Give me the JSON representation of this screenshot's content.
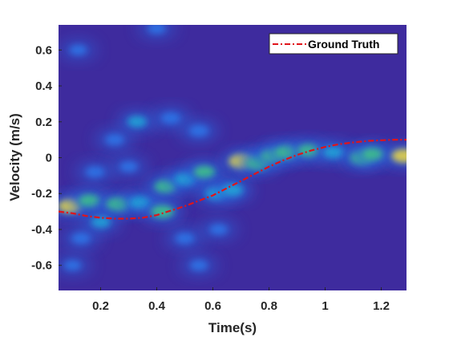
{
  "chart_data": {
    "type": "heatmap",
    "title": "",
    "xlabel": "Time(s)",
    "ylabel": "Velocity (m/s)",
    "xlim": [
      0.05,
      1.29
    ],
    "ylim": [
      -0.74,
      0.74
    ],
    "xticks": [
      0.2,
      0.4,
      0.6,
      0.8,
      1.0,
      1.2
    ],
    "xtick_labels": [
      "0.2",
      "0.4",
      "0.6",
      "0.8",
      "1",
      "1.2"
    ],
    "yticks": [
      0.6,
      0.4,
      0.2,
      0,
      -0.2,
      -0.4,
      -0.6
    ],
    "ytick_labels": [
      "0.6",
      "0.4",
      "0.2",
      "0",
      "-0.2",
      "-0.4",
      "-0.6"
    ],
    "grid": false,
    "legend": {
      "position": "top-right",
      "entries": [
        "Ground Truth"
      ]
    },
    "colors": {
      "background": "#3e2b9e",
      "ground_truth": "#e0141a"
    },
    "ground_truth": {
      "name": "Ground Truth",
      "style": "dash-dot",
      "x": [
        0.05,
        0.1,
        0.15,
        0.2,
        0.25,
        0.3,
        0.35,
        0.4,
        0.45,
        0.5,
        0.55,
        0.6,
        0.65,
        0.7,
        0.75,
        0.8,
        0.85,
        0.9,
        0.95,
        1.0,
        1.05,
        1.1,
        1.15,
        1.2,
        1.25,
        1.29
      ],
      "y": [
        -0.3,
        -0.31,
        -0.325,
        -0.335,
        -0.34,
        -0.34,
        -0.335,
        -0.32,
        -0.295,
        -0.27,
        -0.24,
        -0.21,
        -0.17,
        -0.13,
        -0.09,
        -0.05,
        -0.015,
        0.015,
        0.04,
        0.06,
        0.075,
        0.085,
        0.093,
        0.097,
        0.1,
        0.1
      ]
    },
    "heatmap_blobs": [
      {
        "x": 0.09,
        "y": -0.27,
        "intensity": 0.75
      },
      {
        "x": 0.16,
        "y": -0.24,
        "intensity": 0.55
      },
      {
        "x": 0.26,
        "y": -0.26,
        "intensity": 0.7
      },
      {
        "x": 0.34,
        "y": -0.25,
        "intensity": 0.5
      },
      {
        "x": 0.42,
        "y": -0.3,
        "intensity": 0.7
      },
      {
        "x": 0.43,
        "y": -0.16,
        "intensity": 0.55
      },
      {
        "x": 0.5,
        "y": -0.12,
        "intensity": 0.5
      },
      {
        "x": 0.57,
        "y": -0.08,
        "intensity": 0.55
      },
      {
        "x": 0.61,
        "y": -0.2,
        "intensity": 0.45
      },
      {
        "x": 0.67,
        "y": -0.18,
        "intensity": 0.5
      },
      {
        "x": 0.7,
        "y": -0.02,
        "intensity": 0.85
      },
      {
        "x": 0.76,
        "y": -0.03,
        "intensity": 0.7
      },
      {
        "x": 0.81,
        "y": 0.01,
        "intensity": 0.6
      },
      {
        "x": 0.86,
        "y": 0.03,
        "intensity": 0.65
      },
      {
        "x": 0.94,
        "y": 0.04,
        "intensity": 0.55
      },
      {
        "x": 1.03,
        "y": 0.03,
        "intensity": 0.45
      },
      {
        "x": 1.13,
        "y": 0.0,
        "intensity": 0.7
      },
      {
        "x": 1.17,
        "y": 0.02,
        "intensity": 0.55
      },
      {
        "x": 1.28,
        "y": 0.01,
        "intensity": 0.85
      },
      {
        "x": 0.2,
        "y": -0.36,
        "intensity": 0.35
      },
      {
        "x": 0.13,
        "y": -0.45,
        "intensity": 0.25
      },
      {
        "x": 0.33,
        "y": 0.2,
        "intensity": 0.35
      },
      {
        "x": 0.45,
        "y": 0.22,
        "intensity": 0.3
      },
      {
        "x": 0.55,
        "y": 0.15,
        "intensity": 0.3
      },
      {
        "x": 0.25,
        "y": 0.1,
        "intensity": 0.25
      },
      {
        "x": 0.18,
        "y": -0.08,
        "intensity": 0.25
      },
      {
        "x": 0.3,
        "y": -0.05,
        "intensity": 0.2
      },
      {
        "x": 0.5,
        "y": -0.45,
        "intensity": 0.25
      },
      {
        "x": 0.62,
        "y": -0.4,
        "intensity": 0.2
      },
      {
        "x": 0.1,
        "y": -0.6,
        "intensity": 0.15
      },
      {
        "x": 0.55,
        "y": -0.6,
        "intensity": 0.18
      },
      {
        "x": 0.12,
        "y": 0.6,
        "intensity": 0.15
      },
      {
        "x": 0.4,
        "y": 0.72,
        "intensity": 0.18
      }
    ]
  }
}
